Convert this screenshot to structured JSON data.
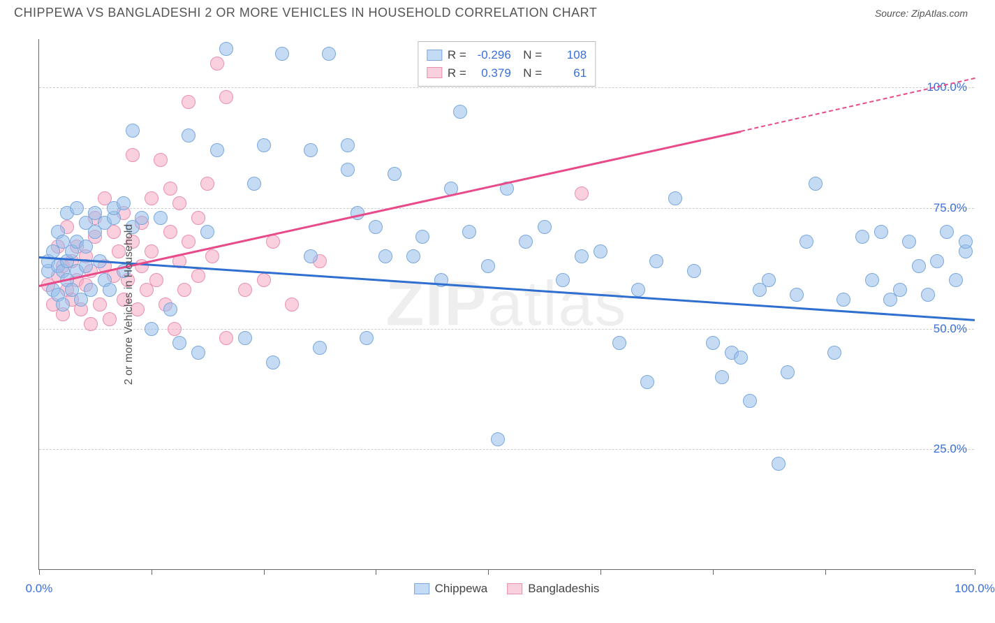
{
  "header": {
    "title": "CHIPPEWA VS BANGLADESHI 2 OR MORE VEHICLES IN HOUSEHOLD CORRELATION CHART",
    "source": "Source: ZipAtlas.com"
  },
  "chart": {
    "type": "scatter",
    "ylabel": "2 or more Vehicles in Household",
    "watermark_bold": "ZIP",
    "watermark_rest": "atlas",
    "background_color": "#ffffff",
    "grid_color": "#cccccc",
    "axis_color": "#666666",
    "tick_label_color": "#3b6fd6",
    "label_color": "#555555",
    "xlim": [
      0,
      100
    ],
    "ylim": [
      0,
      110
    ],
    "ytick_values": [
      25,
      50,
      75,
      100
    ],
    "ytick_labels": [
      "25.0%",
      "50.0%",
      "75.0%",
      "100.0%"
    ],
    "xtick_values": [
      0,
      12,
      24,
      36,
      48,
      60,
      72,
      84,
      100
    ],
    "xlabel_values": [
      0,
      100
    ],
    "xlabel_labels": [
      "0.0%",
      "100.0%"
    ],
    "series": {
      "chippewa": {
        "label": "Chippewa",
        "fill_color": "rgba(150,190,235,0.55)",
        "stroke_color": "#7aa8dd",
        "swatch_fill": "#c4dbf5",
        "swatch_border": "#7aa8dd",
        "marker_radius": 10,
        "marker_border": 1,
        "R": "-0.296",
        "N": "108",
        "trend": {
          "x1": 0,
          "y1": 65,
          "x2": 100,
          "y2": 52,
          "color": "#2e6fd0",
          "width": 3
        },
        "points": [
          [
            1,
            62
          ],
          [
            1,
            64
          ],
          [
            1.5,
            58
          ],
          [
            1.5,
            66
          ],
          [
            2,
            57
          ],
          [
            2,
            63
          ],
          [
            2,
            70
          ],
          [
            2.5,
            55
          ],
          [
            2.5,
            62
          ],
          [
            2.5,
            68
          ],
          [
            3,
            60
          ],
          [
            3,
            64
          ],
          [
            3,
            74
          ],
          [
            3.5,
            58
          ],
          [
            3.5,
            66
          ],
          [
            4,
            62
          ],
          [
            4,
            68
          ],
          [
            4,
            75
          ],
          [
            4.5,
            56
          ],
          [
            5,
            63
          ],
          [
            5,
            67
          ],
          [
            5,
            72
          ],
          [
            5.5,
            58
          ],
          [
            6,
            70
          ],
          [
            6,
            74
          ],
          [
            6.5,
            64
          ],
          [
            7,
            60
          ],
          [
            7,
            72
          ],
          [
            7.5,
            58
          ],
          [
            8,
            73
          ],
          [
            8,
            75
          ],
          [
            9,
            62
          ],
          [
            9,
            76
          ],
          [
            10,
            71
          ],
          [
            10,
            91
          ],
          [
            11,
            73
          ],
          [
            12,
            50
          ],
          [
            13,
            73
          ],
          [
            14,
            54
          ],
          [
            15,
            47
          ],
          [
            16,
            90
          ],
          [
            17,
            45
          ],
          [
            18,
            70
          ],
          [
            19,
            87
          ],
          [
            20,
            108
          ],
          [
            22,
            48
          ],
          [
            23,
            80
          ],
          [
            24,
            88
          ],
          [
            25,
            43
          ],
          [
            26,
            107
          ],
          [
            29,
            87
          ],
          [
            29,
            65
          ],
          [
            30,
            46
          ],
          [
            31,
            107
          ],
          [
            33,
            83
          ],
          [
            33,
            88
          ],
          [
            34,
            74
          ],
          [
            35,
            48
          ],
          [
            36,
            71
          ],
          [
            37,
            65
          ],
          [
            38,
            82
          ],
          [
            40,
            65
          ],
          [
            41,
            69
          ],
          [
            43,
            60
          ],
          [
            44,
            79
          ],
          [
            45,
            95
          ],
          [
            46,
            70
          ],
          [
            48,
            63
          ],
          [
            49,
            27
          ],
          [
            50,
            79
          ],
          [
            52,
            68
          ],
          [
            54,
            71
          ],
          [
            56,
            60
          ],
          [
            58,
            65
          ],
          [
            60,
            66
          ],
          [
            62,
            47
          ],
          [
            64,
            58
          ],
          [
            65,
            39
          ],
          [
            66,
            64
          ],
          [
            68,
            77
          ],
          [
            70,
            62
          ],
          [
            72,
            47
          ],
          [
            73,
            40
          ],
          [
            74,
            45
          ],
          [
            75,
            44
          ],
          [
            76,
            35
          ],
          [
            77,
            58
          ],
          [
            78,
            60
          ],
          [
            79,
            22
          ],
          [
            80,
            41
          ],
          [
            81,
            57
          ],
          [
            82,
            68
          ],
          [
            83,
            80
          ],
          [
            85,
            45
          ],
          [
            86,
            56
          ],
          [
            88,
            69
          ],
          [
            89,
            60
          ],
          [
            90,
            70
          ],
          [
            91,
            56
          ],
          [
            92,
            58
          ],
          [
            93,
            68
          ],
          [
            94,
            63
          ],
          [
            95,
            57
          ],
          [
            96,
            64
          ],
          [
            97,
            70
          ],
          [
            98,
            60
          ],
          [
            99,
            66
          ],
          [
            99,
            68
          ]
        ]
      },
      "bangladeshis": {
        "label": "Bangladeshis",
        "fill_color": "rgba(245,170,195,0.55)",
        "stroke_color": "#e98fb0",
        "swatch_fill": "#f8d0de",
        "swatch_border": "#e98fb0",
        "marker_radius": 10,
        "marker_border": 1,
        "R": "0.379",
        "N": "61",
        "trend_solid": {
          "x1": 0,
          "y1": 59,
          "x2": 75,
          "y2": 91,
          "color": "#e84a8a",
          "width": 3
        },
        "trend_dash": {
          "x1": 75,
          "y1": 91,
          "x2": 100,
          "y2": 102,
          "color": "#e84a8a",
          "width": 2
        },
        "points": [
          [
            1,
            59
          ],
          [
            1.5,
            55
          ],
          [
            2,
            61
          ],
          [
            2,
            67
          ],
          [
            2.5,
            53
          ],
          [
            2.5,
            63
          ],
          [
            3,
            58
          ],
          [
            3,
            71
          ],
          [
            3.5,
            56
          ],
          [
            3.5,
            64
          ],
          [
            4,
            60
          ],
          [
            4,
            67
          ],
          [
            4.5,
            54
          ],
          [
            5,
            59
          ],
          [
            5,
            65
          ],
          [
            5.5,
            51
          ],
          [
            5.5,
            62
          ],
          [
            6,
            69
          ],
          [
            6,
            73
          ],
          [
            6.5,
            55
          ],
          [
            7,
            63
          ],
          [
            7,
            77
          ],
          [
            7.5,
            52
          ],
          [
            8,
            61
          ],
          [
            8,
            70
          ],
          [
            8.5,
            66
          ],
          [
            9,
            56
          ],
          [
            9,
            74
          ],
          [
            9.5,
            60
          ],
          [
            10,
            68
          ],
          [
            10,
            86
          ],
          [
            10.5,
            54
          ],
          [
            11,
            63
          ],
          [
            11,
            72
          ],
          [
            11.5,
            58
          ],
          [
            12,
            66
          ],
          [
            12,
            77
          ],
          [
            12.5,
            60
          ],
          [
            13,
            85
          ],
          [
            13.5,
            55
          ],
          [
            14,
            70
          ],
          [
            14,
            79
          ],
          [
            14.5,
            50
          ],
          [
            15,
            64
          ],
          [
            15,
            76
          ],
          [
            15.5,
            58
          ],
          [
            16,
            68
          ],
          [
            16,
            97
          ],
          [
            17,
            61
          ],
          [
            17,
            73
          ],
          [
            18,
            80
          ],
          [
            18.5,
            65
          ],
          [
            19,
            105
          ],
          [
            20,
            48
          ],
          [
            20,
            98
          ],
          [
            22,
            58
          ],
          [
            24,
            60
          ],
          [
            25,
            68
          ],
          [
            27,
            55
          ],
          [
            30,
            64
          ],
          [
            58,
            78
          ]
        ]
      }
    }
  }
}
